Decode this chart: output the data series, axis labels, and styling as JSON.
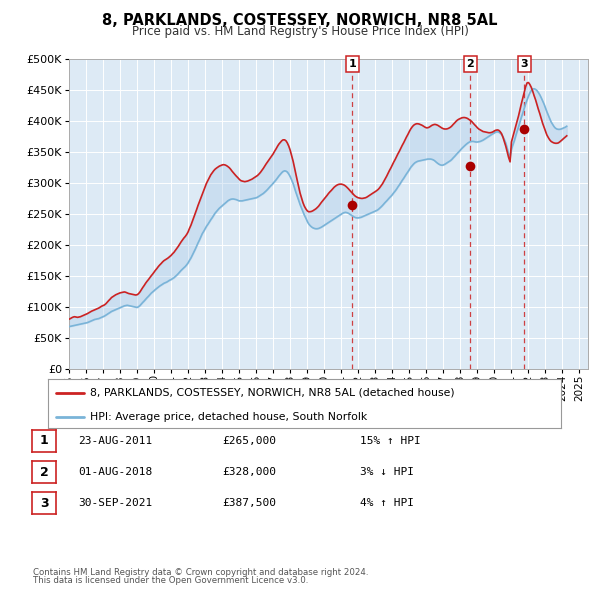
{
  "title": "8, PARKLANDS, COSTESSEY, NORWICH, NR8 5AL",
  "subtitle": "Price paid vs. HM Land Registry's House Price Index (HPI)",
  "hpi_color": "#7ab4d8",
  "price_color": "#cc2222",
  "fill_color": "#c8dff0",
  "plot_bg_color": "#ddeaf5",
  "ylim": [
    0,
    500000
  ],
  "yticks": [
    0,
    50000,
    100000,
    150000,
    200000,
    250000,
    300000,
    350000,
    400000,
    450000,
    500000
  ],
  "xlim_start": 1995.0,
  "xlim_end": 2025.5,
  "transactions": [
    {
      "num": 1,
      "date": "23-AUG-2011",
      "year": 2011.64,
      "price": 265000,
      "pct": "15%",
      "dir": "↑"
    },
    {
      "num": 2,
      "date": "01-AUG-2018",
      "year": 2018.58,
      "price": 328000,
      "pct": "3%",
      "dir": "↓"
    },
    {
      "num": 3,
      "date": "30-SEP-2021",
      "year": 2021.75,
      "price": 387500,
      "pct": "4%",
      "dir": "↑"
    }
  ],
  "legend_label_price": "8, PARKLANDS, COSTESSEY, NORWICH, NR8 5AL (detached house)",
  "legend_label_hpi": "HPI: Average price, detached house, South Norfolk",
  "footer1": "Contains HM Land Registry data © Crown copyright and database right 2024.",
  "footer2": "This data is licensed under the Open Government Licence v3.0.",
  "hpi_data_x": [
    1995.0,
    1995.08,
    1995.17,
    1995.25,
    1995.33,
    1995.42,
    1995.5,
    1995.58,
    1995.67,
    1995.75,
    1995.83,
    1995.92,
    1996.0,
    1996.08,
    1996.17,
    1996.25,
    1996.33,
    1996.42,
    1996.5,
    1996.58,
    1996.67,
    1996.75,
    1996.83,
    1996.92,
    1997.0,
    1997.08,
    1997.17,
    1997.25,
    1997.33,
    1997.42,
    1997.5,
    1997.58,
    1997.67,
    1997.75,
    1997.83,
    1997.92,
    1998.0,
    1998.08,
    1998.17,
    1998.25,
    1998.33,
    1998.42,
    1998.5,
    1998.58,
    1998.67,
    1998.75,
    1998.83,
    1998.92,
    1999.0,
    1999.08,
    1999.17,
    1999.25,
    1999.33,
    1999.42,
    1999.5,
    1999.58,
    1999.67,
    1999.75,
    1999.83,
    1999.92,
    2000.0,
    2000.08,
    2000.17,
    2000.25,
    2000.33,
    2000.42,
    2000.5,
    2000.58,
    2000.67,
    2000.75,
    2000.83,
    2000.92,
    2001.0,
    2001.08,
    2001.17,
    2001.25,
    2001.33,
    2001.42,
    2001.5,
    2001.58,
    2001.67,
    2001.75,
    2001.83,
    2001.92,
    2002.0,
    2002.08,
    2002.17,
    2002.25,
    2002.33,
    2002.42,
    2002.5,
    2002.58,
    2002.67,
    2002.75,
    2002.83,
    2002.92,
    2003.0,
    2003.08,
    2003.17,
    2003.25,
    2003.33,
    2003.42,
    2003.5,
    2003.58,
    2003.67,
    2003.75,
    2003.83,
    2003.92,
    2004.0,
    2004.08,
    2004.17,
    2004.25,
    2004.33,
    2004.42,
    2004.5,
    2004.58,
    2004.67,
    2004.75,
    2004.83,
    2004.92,
    2005.0,
    2005.08,
    2005.17,
    2005.25,
    2005.33,
    2005.42,
    2005.5,
    2005.58,
    2005.67,
    2005.75,
    2005.83,
    2005.92,
    2006.0,
    2006.08,
    2006.17,
    2006.25,
    2006.33,
    2006.42,
    2006.5,
    2006.58,
    2006.67,
    2006.75,
    2006.83,
    2006.92,
    2007.0,
    2007.08,
    2007.17,
    2007.25,
    2007.33,
    2007.42,
    2007.5,
    2007.58,
    2007.67,
    2007.75,
    2007.83,
    2007.92,
    2008.0,
    2008.08,
    2008.17,
    2008.25,
    2008.33,
    2008.42,
    2008.5,
    2008.58,
    2008.67,
    2008.75,
    2008.83,
    2008.92,
    2009.0,
    2009.08,
    2009.17,
    2009.25,
    2009.33,
    2009.42,
    2009.5,
    2009.58,
    2009.67,
    2009.75,
    2009.83,
    2009.92,
    2010.0,
    2010.08,
    2010.17,
    2010.25,
    2010.33,
    2010.42,
    2010.5,
    2010.58,
    2010.67,
    2010.75,
    2010.83,
    2010.92,
    2011.0,
    2011.08,
    2011.17,
    2011.25,
    2011.33,
    2011.42,
    2011.5,
    2011.58,
    2011.67,
    2011.75,
    2011.83,
    2011.92,
    2012.0,
    2012.08,
    2012.17,
    2012.25,
    2012.33,
    2012.42,
    2012.5,
    2012.58,
    2012.67,
    2012.75,
    2012.83,
    2012.92,
    2013.0,
    2013.08,
    2013.17,
    2013.25,
    2013.33,
    2013.42,
    2013.5,
    2013.58,
    2013.67,
    2013.75,
    2013.83,
    2013.92,
    2014.0,
    2014.08,
    2014.17,
    2014.25,
    2014.33,
    2014.42,
    2014.5,
    2014.58,
    2014.67,
    2014.75,
    2014.83,
    2014.92,
    2015.0,
    2015.08,
    2015.17,
    2015.25,
    2015.33,
    2015.42,
    2015.5,
    2015.58,
    2015.67,
    2015.75,
    2015.83,
    2015.92,
    2016.0,
    2016.08,
    2016.17,
    2016.25,
    2016.33,
    2016.42,
    2016.5,
    2016.58,
    2016.67,
    2016.75,
    2016.83,
    2016.92,
    2017.0,
    2017.08,
    2017.17,
    2017.25,
    2017.33,
    2017.42,
    2017.5,
    2017.58,
    2017.67,
    2017.75,
    2017.83,
    2017.92,
    2018.0,
    2018.08,
    2018.17,
    2018.25,
    2018.33,
    2018.42,
    2018.5,
    2018.58,
    2018.67,
    2018.75,
    2018.83,
    2018.92,
    2019.0,
    2019.08,
    2019.17,
    2019.25,
    2019.33,
    2019.42,
    2019.5,
    2019.58,
    2019.67,
    2019.75,
    2019.83,
    2019.92,
    2020.0,
    2020.08,
    2020.17,
    2020.25,
    2020.33,
    2020.42,
    2020.5,
    2020.58,
    2020.67,
    2020.75,
    2020.83,
    2020.92,
    2021.0,
    2021.08,
    2021.17,
    2021.25,
    2021.33,
    2021.42,
    2021.5,
    2021.58,
    2021.67,
    2021.75,
    2021.83,
    2021.92,
    2022.0,
    2022.08,
    2022.17,
    2022.25,
    2022.33,
    2022.42,
    2022.5,
    2022.58,
    2022.67,
    2022.75,
    2022.83,
    2022.92,
    2023.0,
    2023.08,
    2023.17,
    2023.25,
    2023.33,
    2023.42,
    2023.5,
    2023.58,
    2023.67,
    2023.75,
    2023.83,
    2023.92,
    2024.0,
    2024.08,
    2024.17,
    2024.25
  ],
  "hpi_data_y": [
    68000,
    68500,
    69000,
    69500,
    70000,
    70500,
    71000,
    71500,
    72000,
    72500,
    73000,
    73500,
    74000,
    74500,
    75500,
    76500,
    77500,
    78500,
    79500,
    80000,
    80500,
    81000,
    82000,
    83000,
    84000,
    85000,
    86500,
    88000,
    89500,
    91000,
    92500,
    93500,
    94500,
    95500,
    96500,
    97500,
    98500,
    99500,
    100500,
    101500,
    102000,
    102500,
    102000,
    101500,
    101000,
    100500,
    100000,
    99500,
    99000,
    100000,
    102000,
    104500,
    107000,
    109500,
    112000,
    114500,
    117000,
    119500,
    122000,
    124000,
    126000,
    128000,
    130000,
    132000,
    133500,
    135000,
    136500,
    138000,
    139000,
    140000,
    141500,
    143000,
    144000,
    145500,
    147000,
    149000,
    151000,
    153500,
    156000,
    158500,
    161000,
    163000,
    165000,
    168000,
    171000,
    175000,
    179000,
    183500,
    188000,
    193000,
    198000,
    203000,
    208000,
    213000,
    218000,
    222000,
    226000,
    230000,
    233500,
    237000,
    240500,
    244000,
    247500,
    251000,
    254000,
    256500,
    259000,
    261000,
    263000,
    265000,
    267000,
    269000,
    271000,
    272500,
    273500,
    274000,
    274000,
    273500,
    273000,
    272000,
    271000,
    271000,
    271000,
    271500,
    272000,
    272500,
    273000,
    273500,
    274000,
    274500,
    275000,
    275500,
    276000,
    277000,
    278500,
    280000,
    281500,
    283000,
    285000,
    287000,
    289500,
    292000,
    294500,
    297000,
    299500,
    302000,
    305000,
    308000,
    311000,
    314000,
    316500,
    318500,
    319500,
    319000,
    317500,
    314000,
    310000,
    305000,
    299000,
    292000,
    285000,
    278000,
    271500,
    265000,
    259000,
    253500,
    248000,
    243000,
    238000,
    234000,
    231000,
    229000,
    227500,
    226500,
    226000,
    226000,
    226500,
    227500,
    228500,
    230000,
    231500,
    233000,
    234500,
    236000,
    237500,
    239000,
    240500,
    242000,
    243500,
    245000,
    246500,
    248000,
    249500,
    251000,
    252000,
    252500,
    252000,
    251000,
    249500,
    248000,
    246500,
    245000,
    244000,
    243500,
    243500,
    244000,
    244500,
    245500,
    246500,
    247500,
    248500,
    249500,
    250500,
    251500,
    252500,
    253500,
    254500,
    255500,
    257000,
    259000,
    261000,
    263500,
    266000,
    268500,
    271000,
    273500,
    276000,
    278500,
    281000,
    284000,
    287000,
    290000,
    293500,
    297000,
    300500,
    304000,
    307500,
    311000,
    314500,
    318000,
    321500,
    325000,
    328000,
    330500,
    332500,
    334000,
    335000,
    335500,
    336000,
    336500,
    337000,
    337500,
    338000,
    338500,
    338500,
    338500,
    338000,
    337000,
    335500,
    333500,
    331500,
    330000,
    329000,
    328500,
    329000,
    330000,
    331500,
    333000,
    334500,
    336000,
    338000,
    340500,
    343000,
    345500,
    348000,
    350500,
    353000,
    355500,
    358000,
    360000,
    362000,
    364000,
    365500,
    366500,
    367000,
    367000,
    366500,
    366000,
    366000,
    366500,
    367000,
    368000,
    369000,
    370500,
    372000,
    373500,
    375000,
    376500,
    378000,
    379500,
    381000,
    382000,
    382500,
    382000,
    380500,
    378000,
    374500,
    370000,
    364000,
    356000,
    348000,
    341000,
    354000,
    361000,
    368000,
    375500,
    383000,
    390500,
    398000,
    405500,
    413000,
    420500,
    427500,
    434000,
    440000,
    445000,
    449000,
    451500,
    452000,
    451000,
    449000,
    446000,
    442000,
    437500,
    432500,
    427000,
    421000,
    415000,
    409000,
    403500,
    398500,
    394500,
    391000,
    388500,
    387000,
    386500,
    386500,
    387000,
    388000,
    389000,
    390000,
    391500
  ],
  "price_data_x": [
    1995.0,
    1995.08,
    1995.17,
    1995.25,
    1995.33,
    1995.42,
    1995.5,
    1995.58,
    1995.67,
    1995.75,
    1995.83,
    1995.92,
    1996.0,
    1996.08,
    1996.17,
    1996.25,
    1996.33,
    1996.42,
    1996.5,
    1996.58,
    1996.67,
    1996.75,
    1996.83,
    1996.92,
    1997.0,
    1997.08,
    1997.17,
    1997.25,
    1997.33,
    1997.42,
    1997.5,
    1997.58,
    1997.67,
    1997.75,
    1997.83,
    1997.92,
    1998.0,
    1998.08,
    1998.17,
    1998.25,
    1998.33,
    1998.42,
    1998.5,
    1998.58,
    1998.67,
    1998.75,
    1998.83,
    1998.92,
    1999.0,
    1999.08,
    1999.17,
    1999.25,
    1999.33,
    1999.42,
    1999.5,
    1999.58,
    1999.67,
    1999.75,
    1999.83,
    1999.92,
    2000.0,
    2000.08,
    2000.17,
    2000.25,
    2000.33,
    2000.42,
    2000.5,
    2000.58,
    2000.67,
    2000.75,
    2000.83,
    2000.92,
    2001.0,
    2001.08,
    2001.17,
    2001.25,
    2001.33,
    2001.42,
    2001.5,
    2001.58,
    2001.67,
    2001.75,
    2001.83,
    2001.92,
    2002.0,
    2002.08,
    2002.17,
    2002.25,
    2002.33,
    2002.42,
    2002.5,
    2002.58,
    2002.67,
    2002.75,
    2002.83,
    2002.92,
    2003.0,
    2003.08,
    2003.17,
    2003.25,
    2003.33,
    2003.42,
    2003.5,
    2003.58,
    2003.67,
    2003.75,
    2003.83,
    2003.92,
    2004.0,
    2004.08,
    2004.17,
    2004.25,
    2004.33,
    2004.42,
    2004.5,
    2004.58,
    2004.67,
    2004.75,
    2004.83,
    2004.92,
    2005.0,
    2005.08,
    2005.17,
    2005.25,
    2005.33,
    2005.42,
    2005.5,
    2005.58,
    2005.67,
    2005.75,
    2005.83,
    2005.92,
    2006.0,
    2006.08,
    2006.17,
    2006.25,
    2006.33,
    2006.42,
    2006.5,
    2006.58,
    2006.67,
    2006.75,
    2006.83,
    2006.92,
    2007.0,
    2007.08,
    2007.17,
    2007.25,
    2007.33,
    2007.42,
    2007.5,
    2007.58,
    2007.67,
    2007.75,
    2007.83,
    2007.92,
    2008.0,
    2008.08,
    2008.17,
    2008.25,
    2008.33,
    2008.42,
    2008.5,
    2008.58,
    2008.67,
    2008.75,
    2008.83,
    2008.92,
    2009.0,
    2009.08,
    2009.17,
    2009.25,
    2009.33,
    2009.42,
    2009.5,
    2009.58,
    2009.67,
    2009.75,
    2009.83,
    2009.92,
    2010.0,
    2010.08,
    2010.17,
    2010.25,
    2010.33,
    2010.42,
    2010.5,
    2010.58,
    2010.67,
    2010.75,
    2010.83,
    2010.92,
    2011.0,
    2011.08,
    2011.17,
    2011.25,
    2011.33,
    2011.42,
    2011.5,
    2011.58,
    2011.67,
    2011.75,
    2011.83,
    2011.92,
    2012.0,
    2012.08,
    2012.17,
    2012.25,
    2012.33,
    2012.42,
    2012.5,
    2012.58,
    2012.67,
    2012.75,
    2012.83,
    2012.92,
    2013.0,
    2013.08,
    2013.17,
    2013.25,
    2013.33,
    2013.42,
    2013.5,
    2013.58,
    2013.67,
    2013.75,
    2013.83,
    2013.92,
    2014.0,
    2014.08,
    2014.17,
    2014.25,
    2014.33,
    2014.42,
    2014.5,
    2014.58,
    2014.67,
    2014.75,
    2014.83,
    2014.92,
    2015.0,
    2015.08,
    2015.17,
    2015.25,
    2015.33,
    2015.42,
    2015.5,
    2015.58,
    2015.67,
    2015.75,
    2015.83,
    2015.92,
    2016.0,
    2016.08,
    2016.17,
    2016.25,
    2016.33,
    2016.42,
    2016.5,
    2016.58,
    2016.67,
    2016.75,
    2016.83,
    2016.92,
    2017.0,
    2017.08,
    2017.17,
    2017.25,
    2017.33,
    2017.42,
    2017.5,
    2017.58,
    2017.67,
    2017.75,
    2017.83,
    2017.92,
    2018.0,
    2018.08,
    2018.17,
    2018.25,
    2018.33,
    2018.42,
    2018.5,
    2018.58,
    2018.67,
    2018.75,
    2018.83,
    2018.92,
    2019.0,
    2019.08,
    2019.17,
    2019.25,
    2019.33,
    2019.42,
    2019.5,
    2019.58,
    2019.67,
    2019.75,
    2019.83,
    2019.92,
    2020.0,
    2020.08,
    2020.17,
    2020.25,
    2020.33,
    2020.42,
    2020.5,
    2020.58,
    2020.67,
    2020.75,
    2020.83,
    2020.92,
    2021.0,
    2021.08,
    2021.17,
    2021.25,
    2021.33,
    2021.42,
    2021.5,
    2021.58,
    2021.67,
    2021.75,
    2021.83,
    2021.92,
    2022.0,
    2022.08,
    2022.17,
    2022.25,
    2022.33,
    2022.42,
    2022.5,
    2022.58,
    2022.67,
    2022.75,
    2022.83,
    2022.92,
    2023.0,
    2023.08,
    2023.17,
    2023.25,
    2023.33,
    2023.42,
    2023.5,
    2023.58,
    2023.67,
    2023.75,
    2023.83,
    2023.92,
    2024.0,
    2024.08,
    2024.17,
    2024.25
  ],
  "price_data_y": [
    80000,
    81000,
    82500,
    83500,
    84000,
    83500,
    83000,
    83500,
    84000,
    85000,
    86000,
    87000,
    88000,
    89000,
    90500,
    92000,
    93000,
    94000,
    95000,
    96000,
    97000,
    98000,
    99500,
    101000,
    102000,
    103000,
    105000,
    107500,
    110000,
    112500,
    115000,
    116500,
    118000,
    119500,
    120500,
    121500,
    122500,
    123000,
    123500,
    124000,
    123500,
    122500,
    121500,
    121000,
    120500,
    120000,
    119500,
    119000,
    119500,
    121000,
    124000,
    127500,
    131000,
    134500,
    138000,
    141000,
    144000,
    147000,
    150000,
    153000,
    156000,
    159000,
    162000,
    165000,
    167500,
    170000,
    172500,
    174500,
    176000,
    177500,
    179000,
    181000,
    183000,
    185500,
    188000,
    191000,
    194000,
    197500,
    201000,
    204500,
    208000,
    211000,
    213500,
    217000,
    221000,
    226500,
    232000,
    238000,
    244000,
    250500,
    257000,
    263500,
    270000,
    276000,
    282000,
    288000,
    294000,
    299500,
    304500,
    309000,
    313000,
    316500,
    319500,
    322000,
    324000,
    325500,
    327000,
    328000,
    329000,
    329500,
    329000,
    328000,
    326500,
    324500,
    322000,
    319000,
    316000,
    313500,
    311000,
    308500,
    306000,
    304000,
    303000,
    302500,
    302000,
    302500,
    303000,
    304000,
    305000,
    306000,
    307500,
    309000,
    310500,
    312000,
    314500,
    317000,
    320000,
    323500,
    327000,
    330500,
    334000,
    337000,
    340000,
    343500,
    347000,
    351000,
    355000,
    359000,
    362500,
    365500,
    368000,
    369500,
    369500,
    368000,
    364500,
    359000,
    352500,
    344500,
    335000,
    324500,
    313500,
    303000,
    293000,
    283500,
    275000,
    268000,
    262500,
    258000,
    255000,
    253500,
    253500,
    254000,
    255000,
    256500,
    258000,
    260000,
    262500,
    265500,
    268500,
    271500,
    274000,
    277000,
    280000,
    283000,
    285500,
    288000,
    290500,
    293000,
    295000,
    296500,
    297500,
    298000,
    298000,
    297500,
    296500,
    295000,
    293000,
    290500,
    288000,
    285500,
    283000,
    280500,
    278500,
    277000,
    276000,
    275500,
    275000,
    275000,
    275500,
    276000,
    277000,
    278500,
    280000,
    281500,
    283000,
    284500,
    286000,
    287500,
    289500,
    292000,
    295000,
    298500,
    302500,
    306500,
    311000,
    315500,
    320000,
    324500,
    329000,
    333500,
    338000,
    342500,
    347000,
    351500,
    356000,
    360500,
    365000,
    369500,
    374000,
    378500,
    383000,
    387000,
    390500,
    393000,
    394500,
    395500,
    395500,
    395000,
    394000,
    393000,
    391500,
    390000,
    389000,
    389000,
    390000,
    391500,
    393000,
    394000,
    394500,
    394000,
    393000,
    391500,
    390000,
    388500,
    387500,
    387000,
    387000,
    387500,
    388500,
    390000,
    392000,
    394500,
    397000,
    399500,
    401500,
    403000,
    404000,
    405000,
    405500,
    405500,
    405000,
    404000,
    402500,
    401000,
    399000,
    396500,
    394000,
    391500,
    389000,
    387000,
    385500,
    384000,
    383000,
    382500,
    382000,
    381500,
    381000,
    381000,
    381500,
    382500,
    384000,
    385000,
    385500,
    385000,
    383000,
    379500,
    374000,
    367000,
    359000,
    350000,
    341500,
    334000,
    366000,
    374000,
    382500,
    391000,
    399500,
    408500,
    418000,
    427500,
    437000,
    446000,
    455000,
    461500,
    462000,
    459000,
    454000,
    448000,
    441000,
    434000,
    426500,
    419000,
    411500,
    404000,
    396500,
    389500,
    383000,
    377500,
    373000,
    369500,
    367000,
    365500,
    364500,
    364000,
    364000,
    364500,
    366000,
    368000,
    370000,
    372000,
    374000,
    376000
  ]
}
